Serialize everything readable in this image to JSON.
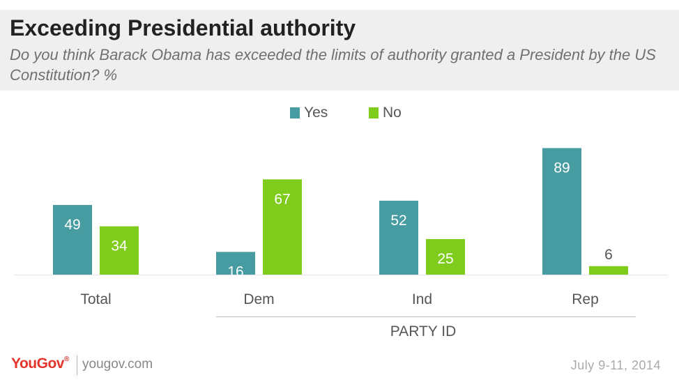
{
  "header": {
    "title": "Exceeding Presidential authority",
    "subtitle": "Do you think Barack Obama has exceeded the limits of authority granted a President by the US Constitution? %"
  },
  "legend": {
    "items": [
      {
        "label": "Yes",
        "color": "#479ca1"
      },
      {
        "label": "No",
        "color": "#7fcc1c"
      }
    ]
  },
  "group_label": "PARTY ID",
  "footer": {
    "logo": "YouGov",
    "site": "yougov.com",
    "date": "July 9-11, 2014"
  },
  "chart_data": {
    "type": "bar",
    "categories": [
      "Total",
      "Dem",
      "Ind",
      "Rep"
    ],
    "series": [
      {
        "name": "Yes",
        "color": "#479ca1",
        "values": [
          49,
          16,
          52,
          89
        ]
      },
      {
        "name": "No",
        "color": "#7fcc1c",
        "values": [
          34,
          67,
          25,
          6
        ]
      }
    ],
    "ylim": [
      0,
      100
    ],
    "grid": false,
    "legend_position": "top-center"
  }
}
